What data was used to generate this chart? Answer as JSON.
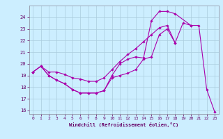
{
  "title": "",
  "xlabel": "Windchill (Refroidissement éolien,°C)",
  "bg_color": "#cceeff",
  "grid_color": "#aaccdd",
  "line_color": "#aa00aa",
  "xlim": [
    -0.5,
    23.5
  ],
  "ylim": [
    15.7,
    25.0
  ],
  "yticks": [
    16,
    17,
    18,
    19,
    20,
    21,
    22,
    23,
    24
  ],
  "xticks": [
    0,
    1,
    2,
    3,
    4,
    5,
    6,
    7,
    8,
    9,
    10,
    11,
    12,
    13,
    14,
    15,
    16,
    17,
    18,
    19,
    20,
    21,
    22,
    23
  ],
  "series": [
    {
      "x": [
        0,
        1,
        2,
        3,
        4,
        5,
        6,
        7,
        8,
        9,
        10,
        11,
        12,
        13,
        14,
        15,
        16,
        17,
        18,
        19,
        20,
        21,
        22,
        23
      ],
      "y": [
        19.3,
        19.8,
        19.0,
        18.6,
        18.3,
        17.8,
        17.5,
        17.5,
        17.5,
        17.7,
        18.8,
        19.0,
        19.2,
        19.5,
        20.4,
        20.6,
        22.5,
        23.0,
        21.8,
        23.5,
        23.3,
        23.3,
        17.8,
        15.9
      ]
    },
    {
      "x": [
        0,
        1,
        2,
        3,
        4,
        5,
        6,
        7,
        8,
        9,
        10,
        11,
        12,
        13,
        14,
        15,
        16,
        17,
        18,
        20
      ],
      "y": [
        19.3,
        19.8,
        19.0,
        18.6,
        18.3,
        17.8,
        17.5,
        17.5,
        17.5,
        17.7,
        19.0,
        20.0,
        20.4,
        20.6,
        20.5,
        23.7,
        24.5,
        24.5,
        24.3,
        23.3
      ]
    },
    {
      "x": [
        0,
        1,
        2,
        3,
        4,
        5,
        6,
        7,
        8,
        9,
        10,
        11,
        12,
        13,
        14,
        15,
        16,
        17,
        18
      ],
      "y": [
        19.3,
        19.8,
        19.3,
        19.3,
        19.1,
        18.8,
        18.7,
        18.5,
        18.5,
        18.8,
        19.5,
        20.2,
        20.8,
        21.3,
        21.9,
        22.5,
        23.1,
        23.3,
        21.8
      ]
    }
  ]
}
